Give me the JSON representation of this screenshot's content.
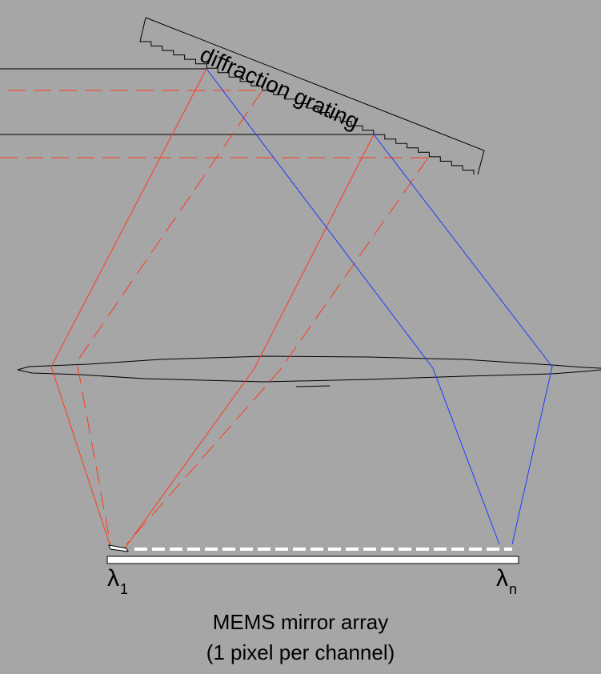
{
  "labels": {
    "grating": "diffraction grating",
    "lambda_first_symbol": "λ",
    "lambda_first_sub": "1",
    "lambda_last_symbol": "λ",
    "lambda_last_sub": "n",
    "caption_line1": "MEMS mirror array",
    "caption_line2": "(1 pixel per channel)"
  },
  "colors": {
    "background": "#a6a6a6",
    "red_beam": "#ff3b1f",
    "blue_beam": "#1f3bff",
    "outline": "#000000",
    "mirror": "#ffffff"
  }
}
